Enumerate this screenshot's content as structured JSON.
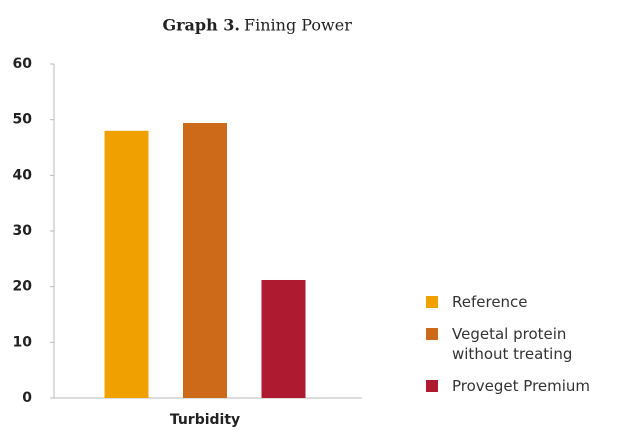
{
  "chart_data": {
    "type": "bar",
    "title_label": "Graph 3.",
    "title": "Fining Power",
    "categories": [
      "Turbidity"
    ],
    "series": [
      {
        "name": "Reference",
        "color": "#f0a000",
        "values": [
          48
        ]
      },
      {
        "name": "Vegetal protein without treating",
        "color": "#cc6a1a",
        "values": [
          49.4
        ]
      },
      {
        "name": "Proveget Premium",
        "color": "#ae1a30",
        "values": [
          21.2
        ]
      }
    ],
    "ylim": [
      0,
      60
    ],
    "yticks": [
      0,
      10,
      20,
      30,
      40,
      50,
      60
    ],
    "grid": false,
    "legend": "right"
  }
}
